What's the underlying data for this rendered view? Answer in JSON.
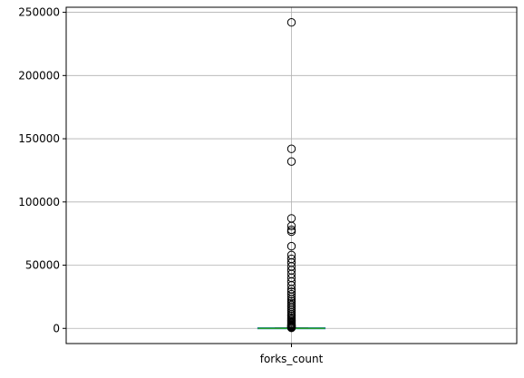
{
  "chart_data": {
    "type": "box",
    "categories": [
      "forks_count"
    ],
    "ylim": [
      -12000,
      254000
    ],
    "yticks": [
      0,
      50000,
      100000,
      150000,
      200000,
      250000
    ],
    "ytick_labels": [
      "0",
      "50000",
      "100000",
      "150000",
      "200000",
      "250000"
    ],
    "grid": true,
    "median_color": "#2ca02c",
    "box": {
      "q1": 0,
      "median": 0,
      "q3": 100,
      "whisker_low": 0,
      "whisker_high": 250
    },
    "outliers": [
      242000,
      142000,
      132000,
      87000,
      81000,
      78000,
      76500,
      65000,
      58000,
      55000,
      52000,
      49000,
      46000,
      43000,
      40000,
      37000,
      34000,
      31000,
      29000,
      27000,
      25000,
      23000,
      21500,
      20000,
      18500,
      17000,
      15500,
      14000,
      12500,
      11000,
      9800,
      8600,
      7500,
      6500,
      5500,
      4600,
      3800,
      3100,
      2500,
      2000,
      1600,
      1200,
      900,
      600,
      400
    ]
  }
}
